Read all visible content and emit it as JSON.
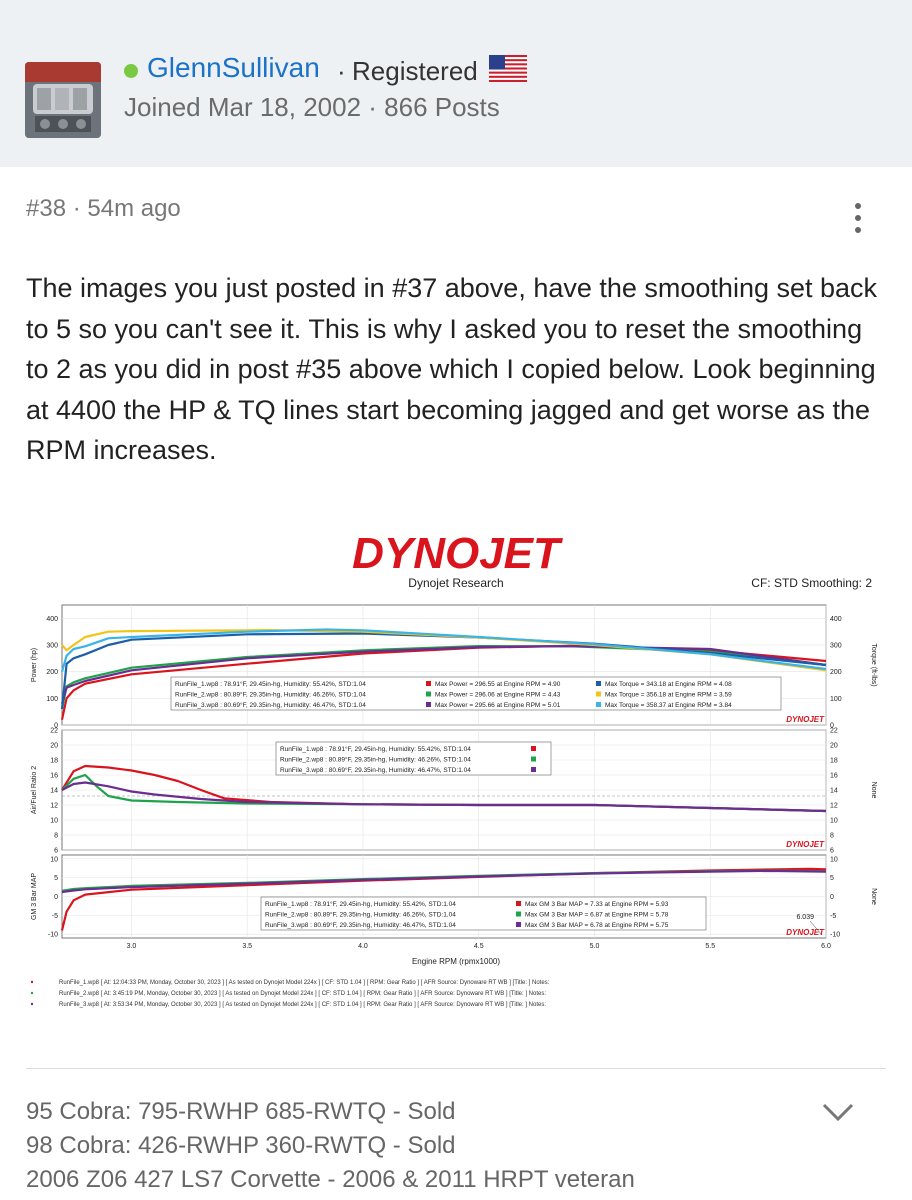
{
  "user": {
    "name": "GlennSullivan",
    "separator": "·",
    "role": "Registered",
    "joined": "Joined Mar 18, 2002 · 866 Posts",
    "status_color": "#7ac943"
  },
  "post": {
    "meta": "#38 · 54m ago",
    "body": "The images you just posted in #37 above, have the smoothing set back to 5 so you can't see it. This is why I asked you to reset the smoothing to 2 as you did in post #35 above which I copied below. Look beginning at 4400 the HP & TQ lines start becoming jagged and get worse as the RPM increases."
  },
  "dyno": {
    "logo": "DYNOJET",
    "company": "Dynojet Research",
    "settings": "CF: STD Smoothing: 2",
    "watermark": "DYNOJET",
    "xlabel": "Engine RPM (rpmx1000)",
    "cursor_value": "6.039",
    "runs": [
      {
        "name": "RunFile_1.wp8",
        "info": "RunFile_1.wp8 [ At: 12:04:33 PM, Monday, October 30, 2023 ] [ As tested on Dynojet Model 224x ] [ CF: STD 1.04 ] [ RPM: Gear Ratio ] [ AFR Source: Dynoware RT WB ] [Title: ] Notes:"
      },
      {
        "name": "RunFile_2.wp8",
        "info": "RunFile_2.wp8 [ At: 3:45:19 PM, Monday, October 30, 2023 ] [ As tested on Dynojet Model 224x ] [ CF: STD 1.04 ] [ RPM: Gear Ratio ] [ AFR Source: Dynoware RT WB ] [Title: ] Notes:"
      },
      {
        "name": "RunFile_3.wp8",
        "info": "RunFile_3.wp8 [ At: 3:53:34 PM, Monday, October 30, 2023 ] [ As tested on Dynojet Model 224x ] [ CF: STD 1.04 ] [ RPM: Gear Ratio ] [ AFR Source: Dynoware RT WB ] [Title: ] Notes:"
      }
    ]
  },
  "chart_data": [
    {
      "type": "line",
      "ylabel": "Power (hp)",
      "ylabel_right": "Torque (ft-lbs)",
      "xlim": [
        2.7,
        6.0
      ],
      "ylim": [
        0,
        450
      ],
      "yticks": [
        0,
        100,
        200,
        300,
        400
      ],
      "legend": [
        {
          "run": "RunFile_1.wp8  : 78.91°F, 29.45in-hg, Humidity: 55.42%, STD:1.04",
          "power": "Max Power = 296.55 at Engine RPM = 4.90",
          "torque": "Max Torque = 343.18 at Engine RPM = 4.08"
        },
        {
          "run": "RunFile_2.wp8  : 80.89°F, 29.35in-hg, Humidity: 46.26%, STD:1.04",
          "power": "Max Power = 296.06 at Engine RPM = 4.43",
          "torque": "Max Torque = 356.18 at Engine RPM = 3.59"
        },
        {
          "run": "RunFile_3.wp8  : 80.69°F, 29.35in-hg, Humidity: 46.47%, STD:1.04",
          "power": "Max Power = 295.66 at Engine RPM = 5.01",
          "torque": "Max Torque = 358.37 at Engine RPM = 3.84"
        }
      ],
      "series": [
        {
          "color": "#d9141c",
          "x": [
            2.7,
            2.72,
            2.75,
            2.8,
            3.0,
            3.5,
            4.0,
            4.5,
            4.9,
            5.5,
            6.0
          ],
          "y": [
            20,
            100,
            130,
            155,
            190,
            230,
            268,
            290,
            297,
            280,
            240
          ]
        },
        {
          "color": "#1fa34a",
          "x": [
            2.7,
            2.72,
            2.75,
            2.8,
            3.0,
            3.5,
            4.0,
            4.5,
            4.9,
            5.5,
            6.0
          ],
          "y": [
            60,
            145,
            160,
            175,
            215,
            255,
            280,
            296,
            295,
            275,
            225
          ]
        },
        {
          "color": "#6b2d91",
          "x": [
            2.7,
            2.72,
            2.75,
            2.8,
            3.0,
            3.5,
            4.0,
            4.5,
            4.9,
            5.5,
            6.0
          ],
          "y": [
            80,
            140,
            150,
            165,
            205,
            250,
            275,
            292,
            296,
            285,
            225
          ]
        },
        {
          "color": "#1b5fa8",
          "x": [
            2.7,
            2.72,
            2.75,
            2.8,
            2.9,
            3.0,
            3.5,
            4.0,
            4.5,
            5.0,
            5.5,
            6.0
          ],
          "y": [
            60,
            230,
            250,
            265,
            300,
            320,
            340,
            343,
            328,
            305,
            270,
            225
          ]
        },
        {
          "color": "#f0c419",
          "x": [
            2.7,
            2.72,
            2.75,
            2.8,
            2.9,
            3.0,
            3.5,
            3.59,
            4.0,
            4.5,
            5.0,
            5.5,
            6.0
          ],
          "y": [
            300,
            280,
            300,
            330,
            350,
            352,
            355,
            356,
            350,
            328,
            300,
            265,
            205
          ]
        },
        {
          "color": "#3ab4e6",
          "x": [
            2.7,
            2.72,
            2.75,
            2.8,
            2.9,
            3.0,
            3.5,
            3.84,
            4.0,
            4.5,
            5.0,
            5.5,
            6.0
          ],
          "y": [
            200,
            260,
            285,
            295,
            325,
            330,
            350,
            358,
            355,
            330,
            303,
            265,
            210
          ]
        }
      ]
    },
    {
      "type": "line",
      "ylabel": "Air/Fuel Ratio 2",
      "ylabel_right": "None",
      "xlim": [
        2.7,
        6.0
      ],
      "ylim": [
        6,
        22
      ],
      "yticks": [
        6,
        8,
        10,
        12,
        14,
        16,
        18,
        20,
        22
      ],
      "reference_line": 13.2,
      "legend": [
        {
          "run": "RunFile_1.wp8  : 78.91°F, 29.45in-hg, Humidity: 55.42%, STD:1.04"
        },
        {
          "run": "RunFile_2.wp8  : 80.89°F, 29.35in-hg, Humidity: 46.26%, STD:1.04"
        },
        {
          "run": "RunFile_3.wp8  : 80.69°F, 29.35in-hg, Humidity: 46.47%, STD:1.04"
        }
      ],
      "series": [
        {
          "color": "#d9141c",
          "x": [
            2.7,
            2.75,
            2.8,
            2.9,
            3.0,
            3.1,
            3.2,
            3.3,
            3.4,
            3.6,
            4.0,
            4.5,
            5.0,
            5.5,
            6.0
          ],
          "y": [
            14,
            16.5,
            17.2,
            17,
            16.6,
            16,
            15.2,
            14,
            12.9,
            12.4,
            12.1,
            12,
            12,
            11.6,
            11.2
          ]
        },
        {
          "color": "#1fa34a",
          "x": [
            2.7,
            2.75,
            2.8,
            2.85,
            2.9,
            3.0,
            3.2,
            3.5,
            4.0,
            4.5,
            5.0,
            5.5,
            6.0
          ],
          "y": [
            14,
            15.5,
            16,
            14.5,
            13.2,
            12.6,
            12.4,
            12.2,
            12.1,
            12,
            12,
            11.6,
            11.2
          ]
        },
        {
          "color": "#6b2d91",
          "x": [
            2.7,
            2.75,
            2.8,
            2.9,
            3.0,
            3.1,
            3.3,
            3.5,
            4.0,
            4.5,
            5.0,
            5.5,
            6.0
          ],
          "y": [
            14,
            14.8,
            15,
            14.5,
            13.8,
            13.4,
            12.8,
            12.4,
            12.1,
            12,
            12,
            11.6,
            11.2
          ]
        }
      ]
    },
    {
      "type": "line",
      "ylabel": "GM 3 Bar MAP",
      "ylabel_right": "None",
      "xlim": [
        2.7,
        6.0
      ],
      "ylim": [
        -11,
        11
      ],
      "yticks": [
        -10,
        -5,
        0,
        5,
        10
      ],
      "legend": [
        {
          "run": "RunFile_1.wp8  : 78.91°F, 29.45in-hg, Humidity: 55.42%, STD:1.04",
          "map": "Max GM 3 Bar MAP = 7.33 at Engine RPM = 5.93"
        },
        {
          "run": "RunFile_2.wp8  : 80.89°F, 29.35in-hg, Humidity: 46.26%, STD:1.04",
          "map": "Max GM 3 Bar MAP = 6.87 at Engine RPM = 5.78"
        },
        {
          "run": "RunFile_3.wp8  : 80.69°F, 29.35in-hg, Humidity: 46.47%, STD:1.04",
          "map": "Max GM 3 Bar MAP = 6.78 at Engine RPM = 5.75"
        }
      ],
      "series": [
        {
          "color": "#d9141c",
          "x": [
            2.7,
            2.72,
            2.75,
            2.8,
            3.0,
            3.5,
            4.0,
            4.5,
            5.0,
            5.5,
            5.93,
            6.0
          ],
          "y": [
            -9,
            -4,
            -1,
            0.5,
            1.8,
            3,
            4.2,
            5.2,
            6.2,
            6.9,
            7.33,
            7.2
          ]
        },
        {
          "color": "#1fa34a",
          "x": [
            2.7,
            2.75,
            2.8,
            3.0,
            3.5,
            4.0,
            4.5,
            5.0,
            5.5,
            5.78,
            6.0
          ],
          "y": [
            1.5,
            2,
            2.2,
            2.8,
            3.6,
            4.6,
            5.5,
            6.2,
            6.7,
            6.87,
            6.7
          ]
        },
        {
          "color": "#6b2d91",
          "x": [
            2.7,
            2.75,
            2.8,
            3.0,
            3.5,
            4.0,
            4.5,
            5.0,
            5.5,
            5.75,
            6.0
          ],
          "y": [
            1.2,
            1.6,
            1.9,
            2.5,
            3.4,
            4.4,
            5.3,
            6.1,
            6.6,
            6.78,
            6.6
          ]
        }
      ],
      "xticks": [
        3.0,
        3.5,
        4.0,
        4.5,
        5.0,
        5.5,
        6.0
      ]
    }
  ],
  "signature": {
    "lines": [
      "95 Cobra: 795-RWHP 685-RWTQ - Sold",
      "98 Cobra: 426-RWHP 360-RWTQ - Sold",
      "2006 Z06 427 LS7 Corvette - 2006 & 2011 HRPT veteran"
    ]
  }
}
